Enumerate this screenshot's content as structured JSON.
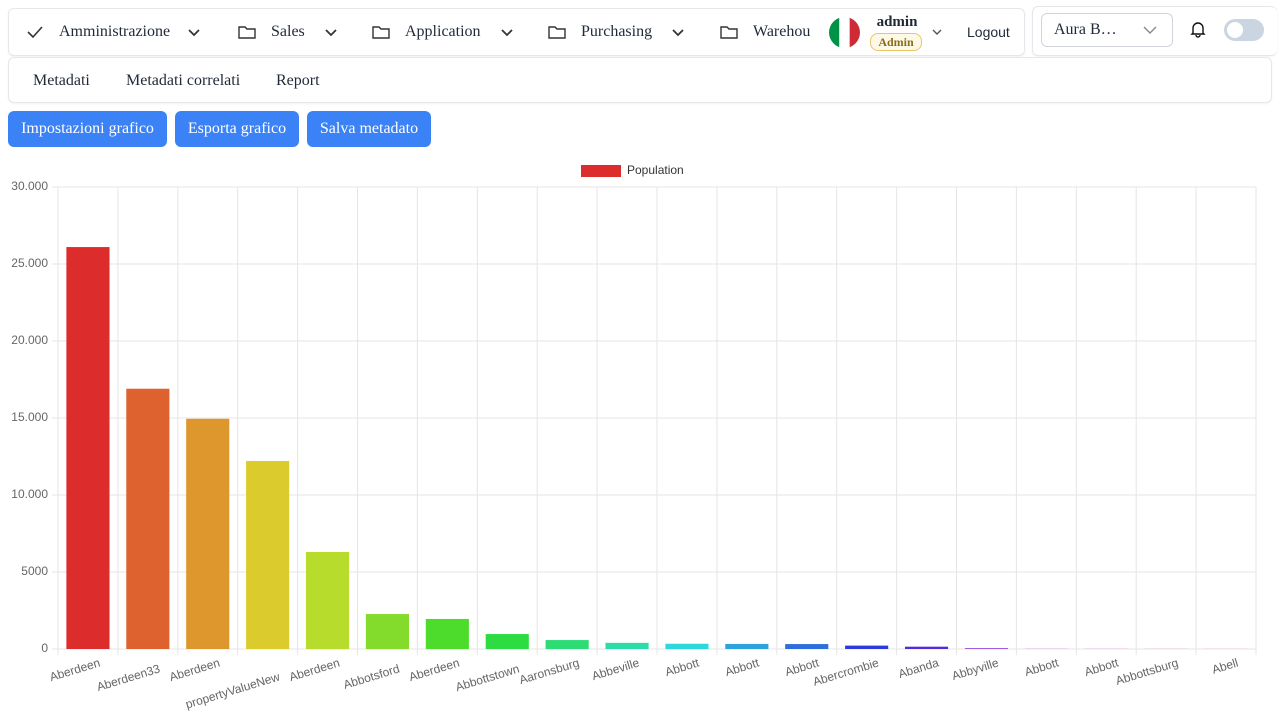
{
  "nav": {
    "items": [
      "Amministrazione",
      "Sales",
      "Application",
      "Purchasing",
      "Warehou"
    ],
    "user": "admin",
    "role": "Admin",
    "logout": "Logout",
    "select": "Aura B…"
  },
  "tabs": [
    "Metadati",
    "Metadati correlati",
    "Report"
  ],
  "buttons": [
    "Impostazioni grafico",
    "Esporta grafico",
    "Salva metadato"
  ],
  "chart_data": {
    "type": "bar",
    "categories": [
      "Aberdeen",
      "Aberdeen33",
      "Aberdeen",
      "propertyValueNew",
      "Aberdeen",
      "Abbotsford",
      "Aberdeen",
      "Abbottstown",
      "Aaronsburg",
      "Abbeville",
      "Abbott",
      "Abbott",
      "Abbott",
      "Abercrombie",
      "Abanda",
      "Abbyville",
      "Abbott",
      "Abbott",
      "Abbottsburg",
      "Abell"
    ],
    "series": [
      {
        "name": "Population",
        "color": "#dc2c2c",
        "colors": [
          "#dc2c2c",
          "#dd6230",
          "#dd972c",
          "#dccb2c",
          "#b8dc2c",
          "#83dc2c",
          "#4edc2c",
          "#2cdc40",
          "#2cdc75",
          "#2cdca9",
          "#2cd8dc",
          "#2ca3dc",
          "#2c6edc",
          "#2c3adc",
          "#502cdc",
          "#852cdc",
          "#b92cdc",
          "#dc2cc7",
          "#dc2c93",
          "#dc2c5e"
        ],
        "values": [
          26100,
          16900,
          14950,
          12210,
          6300,
          2270,
          1950,
          970,
          580,
          400,
          340,
          330,
          320,
          220,
          150,
          50,
          10,
          8,
          6,
          4
        ]
      }
    ],
    "ylim": [
      0,
      30000
    ],
    "yticks": [
      0,
      5000,
      {
        "value": 10000,
        "label": "10.000"
      },
      {
        "value": 15000,
        "label": "15.000"
      },
      {
        "value": 20000,
        "label": "20.000"
      },
      {
        "value": 25000,
        "label": "25.000"
      },
      {
        "value": 30000,
        "label": "30.000"
      }
    ],
    "grid": true,
    "legend": "top"
  }
}
